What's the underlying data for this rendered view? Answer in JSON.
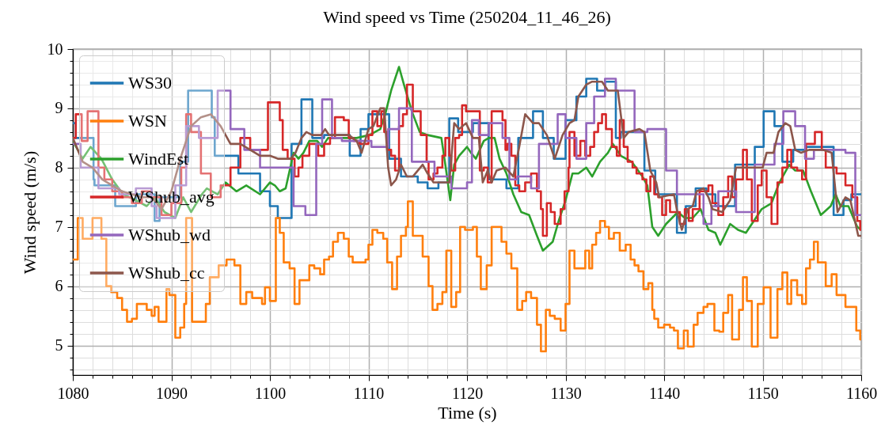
{
  "chart_data": {
    "type": "line",
    "title": "Wind speed vs Time (250204_11_46_26)",
    "xlabel": "Time (s)",
    "ylabel": "Wind speed (m/s)",
    "xlim": [
      1080,
      1160
    ],
    "xticks": [
      1080,
      {
        "value": 1082,
        "label": null
      },
      {
        "value": 1084,
        "label": null
      },
      {
        "value": 1086,
        "label": null
      },
      {
        "value": 1088,
        "label": null
      },
      1090,
      {
        "value": 1092,
        "label": null
      },
      {
        "value": 1094,
        "label": null
      },
      {
        "value": 1096,
        "label": null
      },
      {
        "value": 1098,
        "label": null
      },
      1100,
      {
        "value": 1102,
        "label": null
      },
      {
        "value": 1104,
        "label": null
      },
      {
        "value": 1106,
        "label": null
      },
      {
        "value": 1108,
        "label": null
      },
      1110,
      {
        "value": 1112,
        "label": null
      },
      {
        "value": 1114,
        "label": null
      },
      {
        "value": 1116,
        "label": null
      },
      {
        "value": 1118,
        "label": null
      },
      1120,
      {
        "value": 1122,
        "label": null
      },
      {
        "value": 1124,
        "label": null
      },
      {
        "value": 1126,
        "label": null
      },
      {
        "value": 1128,
        "label": null
      },
      1130,
      {
        "value": 1132,
        "label": null
      },
      {
        "value": 1134,
        "label": null
      },
      {
        "value": 1136,
        "label": null
      },
      {
        "value": 1138,
        "label": null
      },
      1140,
      {
        "value": 1142,
        "label": null
      },
      {
        "value": 1144,
        "label": null
      },
      {
        "value": 1146,
        "label": null
      },
      {
        "value": 1148,
        "label": null
      },
      1150,
      {
        "value": 1152,
        "label": null
      },
      {
        "value": 1154,
        "label": null
      },
      {
        "value": 1156,
        "label": null
      },
      {
        "value": 1158,
        "label": null
      },
      1160
    ],
    "ylim": [
      4.5,
      10
    ],
    "yticks": [
      {
        "value": 4.6,
        "label": null
      },
      {
        "value": 4.8,
        "label": null
      },
      5,
      {
        "value": 5.2,
        "label": null
      },
      {
        "value": 5.4,
        "label": null
      },
      {
        "value": 5.6,
        "label": null
      },
      {
        "value": 5.8,
        "label": null
      },
      6,
      {
        "value": 6.2,
        "label": null
      },
      {
        "value": 6.4,
        "label": null
      },
      {
        "value": 6.6,
        "label": null
      },
      {
        "value": 6.8,
        "label": null
      },
      7,
      {
        "value": 7.2,
        "label": null
      },
      {
        "value": 7.4,
        "label": null
      },
      {
        "value": 7.6,
        "label": null
      },
      {
        "value": 7.8,
        "label": null
      },
      8,
      {
        "value": 8.2,
        "label": null
      },
      {
        "value": 8.4,
        "label": null
      },
      {
        "value": 8.6,
        "label": null
      },
      {
        "value": 8.8,
        "label": null
      },
      9,
      {
        "value": 9.2,
        "label": null
      },
      {
        "value": 9.4,
        "label": null
      },
      {
        "value": 9.6,
        "label": null
      },
      {
        "value": 9.8,
        "label": null
      },
      10
    ],
    "grid": true,
    "legend": "top left",
    "line_style": "solid",
    "series": [
      {
        "name": "WS30",
        "type": "step",
        "color": "#1f77b4",
        "x": [
          1080,
          1080.3,
          1082.1,
          1082.2,
          1084.3,
          1086.4,
          1088.3,
          1088.8,
          1090.9,
          1091.7,
          1094.1,
          1094.4,
          1096.8,
          1099.0,
          1100.0,
          1100.8,
          1102.2,
          1103.2,
          1104.3,
          1105.5,
          1108.1,
          1109.2,
          1110.0,
          1112.1,
          1113.3,
          1115.0,
          1116.0,
          1117.1,
          1118.2,
          1119.1,
          1120.6,
          1122.2,
          1124.0,
          1125.2,
          1126.7,
          1127.7,
          1128.8,
          1130.0,
          1131.1,
          1132.1,
          1133.2,
          1134.0,
          1135.1,
          1135.6,
          1138.0,
          1139.1,
          1141.3,
          1142.2,
          1143.2,
          1144.3,
          1145.2,
          1147.2,
          1149.2,
          1150.1,
          1151.2,
          1152.0,
          1153.1,
          1154.4,
          1157.2,
          1158.2,
          1159.0,
          1160
        ],
        "values": [
          8.75,
          8.5,
          7.8,
          7.7,
          7.35,
          7.55,
          7.1,
          7.5,
          8.1,
          9.3,
          8.85,
          8.2,
          7.9,
          7.6,
          7.35,
          7.15,
          8.4,
          9.15,
          8.5,
          8.55,
          8.2,
          8.65,
          8.9,
          8.15,
          7.85,
          7.75,
          7.65,
          7.75,
          8.83,
          8.6,
          8.75,
          7.8,
          7.65,
          8.5,
          8.95,
          8.5,
          8.15,
          8.8,
          9.2,
          9.5,
          9.3,
          9.45,
          8.5,
          8.6,
          7.95,
          7.55,
          6.9,
          7.35,
          7.65,
          7.55,
          7.35,
          8.05,
          8.35,
          8.95,
          8.7,
          8.1,
          8.3,
          8.35,
          7.2,
          7.45,
          7.55,
          7.55
        ]
      },
      {
        "name": "WSN",
        "type": "step",
        "color": "#ff7f0e",
        "x": [
          1080,
          1080.5,
          1081.0,
          1082.0,
          1082.9,
          1083.4,
          1083.9,
          1084.5,
          1085.0,
          1085.5,
          1086.0,
          1086.5,
          1087.5,
          1088.0,
          1088.3,
          1088.7,
          1089.5,
          1089.8,
          1090.4,
          1090.9,
          1091.3,
          1091.5,
          1092.1,
          1093.5,
          1093.9,
          1094.8,
          1095.6,
          1096.4,
          1097.0,
          1097.6,
          1098.2,
          1099.2,
          1099.5,
          1100.0,
          1100.6,
          1101.0,
          1101.4,
          1102.0,
          1102.5,
          1103.0,
          1104.0,
          1104.5,
          1105.1,
          1105.5,
          1106.0,
          1106.4,
          1106.9,
          1107.5,
          1108.0,
          1108.4,
          1109.7,
          1110.0,
          1110.4,
          1110.9,
          1111.5,
          1111.9,
          1112.4,
          1112.9,
          1113.3,
          1113.8,
          1114.0,
          1114.5,
          1115.5,
          1116.1,
          1116.5,
          1117.0,
          1117.5,
          1117.9,
          1118.4,
          1118.9,
          1119.3,
          1119.8,
          1120.6,
          1121.0,
          1121.4,
          1122.0,
          1122.5,
          1123.5,
          1124.0,
          1124.5,
          1125.1,
          1125.6,
          1126.0,
          1126.5,
          1127.1,
          1127.5,
          1128.0,
          1128.4,
          1128.9,
          1129.5,
          1130.0,
          1130.4,
          1130.9,
          1132.0,
          1132.4,
          1132.7,
          1133.1,
          1133.5,
          1134.0,
          1134.4,
          1134.9,
          1135.5,
          1136.1,
          1136.6,
          1137.0,
          1137.4,
          1137.9,
          1138.4,
          1138.8,
          1139.0,
          1139.4,
          1140.0,
          1140.6,
          1141.0,
          1141.4,
          1142.0,
          1142.4,
          1143.0,
          1143.4,
          1144.0,
          1144.4,
          1145.1,
          1145.6,
          1146.0,
          1146.5,
          1146.9,
          1147.6,
          1148.0,
          1148.4,
          1148.9,
          1149.5,
          1150.1,
          1150.8,
          1151.5,
          1152.0,
          1152.5,
          1152.9,
          1153.5,
          1154.0,
          1154.4,
          1154.8,
          1155.2,
          1155.6,
          1156.4,
          1157.0,
          1157.5,
          1158.4,
          1159.5,
          1159.9,
          1160
        ],
        "values": [
          6.45,
          7.15,
          6.8,
          7.15,
          6.8,
          6.0,
          5.9,
          5.8,
          5.6,
          5.4,
          5.45,
          5.7,
          5.6,
          5.5,
          5.65,
          5.4,
          5.95,
          5.85,
          5.13,
          5.3,
          5.7,
          7.15,
          5.4,
          5.7,
          6.15,
          6.35,
          6.45,
          6.35,
          5.7,
          5.9,
          5.8,
          5.7,
          5.98,
          5.75,
          7.15,
          6.9,
          6.4,
          6.3,
          5.7,
          6.1,
          6.35,
          6.3,
          6.2,
          6.45,
          6.5,
          6.75,
          6.9,
          6.8,
          6.5,
          6.4,
          6.45,
          6.7,
          6.95,
          6.9,
          6.8,
          6.4,
          5.95,
          6.5,
          6.85,
          7.0,
          7.43,
          6.85,
          6.5,
          6.0,
          5.6,
          5.7,
          5.9,
          6.6,
          5.65,
          5.9,
          7.0,
          6.95,
          7.0,
          6.5,
          5.95,
          6.35,
          7.0,
          6.75,
          6.55,
          6.3,
          5.6,
          5.75,
          5.9,
          5.8,
          5.35,
          4.9,
          5.6,
          5.5,
          5.45,
          5.25,
          5.7,
          6.6,
          6.3,
          6.6,
          6.3,
          6.7,
          6.9,
          7.1,
          7.0,
          6.8,
          6.9,
          6.6,
          6.7,
          6.45,
          6.35,
          6.25,
          5.95,
          6.05,
          5.6,
          5.45,
          5.3,
          5.35,
          5.3,
          5.25,
          4.95,
          5.25,
          4.98,
          5.35,
          5.55,
          5.65,
          5.7,
          5.25,
          5.23,
          5.55,
          5.85,
          5.1,
          5.6,
          6.15,
          5.75,
          4.98,
          5.7,
          5.98,
          5.13,
          5.95,
          6.23,
          5.7,
          6.1,
          5.85,
          5.7,
          6.3,
          6.45,
          6.75,
          6.4,
          6.0,
          6.2,
          5.85,
          5.65,
          5.25,
          5.1,
          5.1
        ]
      },
      {
        "name": "WindEst",
        "type": "line",
        "color": "#2ca02c",
        "x": [
          1080,
          1081.0,
          1081.8,
          1082.9,
          1084.0,
          1085.1,
          1086.4,
          1087.5,
          1088.3,
          1089.3,
          1090.4,
          1091.2,
          1092.0,
          1093.1,
          1093.6,
          1094.7,
          1095.5,
          1096.6,
          1097.6,
          1099.0,
          1100.0,
          1100.5,
          1101.0,
          1101.6,
          1102.4,
          1102.9,
          1103.4,
          1104.0,
          1104.8,
          1105.3,
          1105.9,
          1106.7,
          1107.7,
          1108.8,
          1110.1,
          1111.2,
          1111.7,
          1112.3,
          1113.1,
          1113.6,
          1114.4,
          1115.2,
          1116.0,
          1117.4,
          1117.8,
          1118.3,
          1118.7,
          1119.2,
          1120.0,
          1120.4,
          1120.9,
          1121.7,
          1122.2,
          1122.8,
          1123.3,
          1124.0,
          1124.7,
          1125.5,
          1126.3,
          1127.1,
          1127.7,
          1128.7,
          1129.3,
          1130.0,
          1130.7,
          1131.3,
          1132.1,
          1132.7,
          1133.5,
          1134.3,
          1134.8,
          1135.6,
          1136.7,
          1137.8,
          1138.3,
          1138.8,
          1139.4,
          1140.2,
          1140.8,
          1141.4,
          1142.1,
          1142.9,
          1143.7,
          1144.5,
          1145.2,
          1145.7,
          1146.7,
          1147.5,
          1148.3,
          1149.1,
          1149.9,
          1150.9,
          1151.7,
          1152.7,
          1153.3,
          1154.1,
          1154.9,
          1155.9,
          1156.9,
          1157.4,
          1157.9,
          1158.7,
          1159.6,
          1160
        ],
        "values": [
          8.45,
          8.15,
          8.35,
          8.15,
          7.8,
          7.55,
          7.45,
          7.35,
          7.5,
          7.25,
          7.15,
          7.5,
          7.25,
          7.55,
          7.65,
          7.55,
          7.75,
          7.6,
          7.7,
          7.55,
          7.75,
          7.7,
          7.6,
          7.65,
          8.25,
          8.15,
          8.25,
          8.45,
          8.45,
          8.35,
          8.5,
          8.5,
          8.5,
          8.5,
          8.55,
          8.65,
          8.9,
          9.3,
          9.7,
          9.4,
          8.95,
          8.6,
          8.55,
          8.5,
          8.05,
          7.45,
          8.05,
          8.2,
          8.35,
          8.25,
          8.15,
          8.45,
          8.5,
          8.5,
          8.15,
          7.9,
          7.55,
          7.25,
          7.2,
          6.85,
          6.6,
          6.75,
          7.1,
          7.45,
          7.9,
          7.9,
          8.0,
          7.85,
          8.1,
          8.25,
          8.4,
          8.2,
          8.1,
          7.85,
          7.7,
          7.0,
          6.85,
          7.05,
          7.15,
          7.25,
          7.15,
          7.15,
          7.3,
          6.95,
          6.9,
          6.7,
          7.05,
          6.95,
          6.9,
          7.1,
          7.3,
          7.4,
          7.75,
          8.05,
          7.95,
          7.95,
          7.6,
          7.2,
          7.35,
          7.55,
          7.35,
          7.35,
          7.0,
          6.95
        ]
      },
      {
        "name": "WShub_avg",
        "type": "step",
        "color": "#d62728",
        "x": [
          1080,
          1080.3,
          1080.9,
          1081.5,
          1082.6,
          1083.2,
          1084,
          1085,
          1086,
          1087,
          1088,
          1089,
          1090,
          1091,
          1091.5,
          1092,
          1093,
          1094,
          1095,
          1096,
          1097,
          1098,
          1099.8,
          1101.0,
          1101.3,
          1101.8,
          1102.5,
          1102.9,
          1103.3,
          1104.0,
          1104.9,
          1105.5,
          1106.1,
          1106.6,
          1107.5,
          1108.0,
          1108.5,
          1109.1,
          1110.0,
          1110.4,
          1110.9,
          1111.3,
          1111.6,
          1111.9,
          1112.3,
          1112.7,
          1113.1,
          1113.5,
          1113.9,
          1114.5,
          1115.3,
          1115.9,
          1116.1,
          1116.6,
          1117.0,
          1117.5,
          1117.8,
          1118.2,
          1118.4,
          1118.8,
          1119.2,
          1119.5,
          1119.9,
          1121.3,
          1121.7,
          1122.1,
          1122.5,
          1123.6,
          1123.9,
          1124.1,
          1124.5,
          1124.9,
          1125.3,
          1125.9,
          1126.5,
          1127.1,
          1127.5,
          1127.7,
          1128.1,
          1128.5,
          1128.9,
          1129.5,
          1129.9,
          1130.3,
          1130.4,
          1130.9,
          1131.5,
          1132.0,
          1132.5,
          1132.9,
          1133.3,
          1133.7,
          1134.1,
          1134.7,
          1135.2,
          1135.5,
          1135.9,
          1136.3,
          1136.8,
          1137.2,
          1137.8,
          1138.2,
          1138.6,
          1139.0,
          1139.4,
          1139.8,
          1140.2,
          1140.6,
          1141.6,
          1142.1,
          1142.5,
          1142.9,
          1143.6,
          1144.5,
          1144.9,
          1145.5,
          1146.0,
          1146.5,
          1146.9,
          1147.3,
          1148.0,
          1148.4,
          1148.9,
          1149.5,
          1149.9,
          1150.4,
          1150.9,
          1151.5,
          1152.0,
          1152.5,
          1152.9,
          1153.5,
          1154.0,
          1154.4,
          1155.3,
          1156.0,
          1156.4,
          1157.5,
          1158.4,
          1159.1,
          1159.6,
          1159.9,
          1160
        ],
        "values": [
          8.5,
          8.9,
          8.45,
          8.95,
          8.0,
          7.8,
          7.6,
          7.5,
          7.4,
          7.6,
          7.5,
          7.2,
          7.4,
          8.0,
          8.9,
          8.6,
          7.9,
          7.5,
          7.7,
          8.0,
          8.5,
          8.3,
          9.1,
          8.8,
          8.3,
          8.15,
          7.85,
          8.0,
          8.2,
          8.4,
          8.2,
          8.4,
          8.5,
          8.85,
          8.8,
          8.5,
          8.45,
          8.4,
          8.55,
          8.95,
          8.7,
          8.95,
          8.6,
          8.3,
          8.2,
          7.95,
          8.7,
          8.9,
          9.4,
          8.95,
          8.55,
          8.1,
          7.8,
          7.9,
          8.0,
          8.2,
          8.5,
          8.2,
          7.95,
          8.5,
          8.55,
          9.05,
          8.95,
          7.95,
          8.0,
          7.75,
          8.95,
          8.8,
          8.3,
          8.4,
          8.2,
          7.7,
          7.6,
          7.75,
          7.9,
          7.6,
          7.3,
          6.85,
          7.4,
          7.25,
          7.05,
          7.3,
          7.6,
          8.0,
          8.6,
          8.2,
          8.45,
          8.2,
          8.35,
          8.6,
          8.75,
          8.9,
          8.65,
          8.35,
          8.2,
          8.8,
          8.35,
          8.1,
          8.0,
          7.9,
          7.8,
          7.6,
          7.85,
          7.55,
          7.5,
          7.2,
          7.45,
          7.25,
          7.05,
          7.3,
          7.1,
          7.3,
          7.6,
          7.7,
          7.4,
          7.2,
          7.5,
          7.85,
          7.5,
          7.8,
          8.3,
          7.8,
          7.1,
          7.7,
          7.95,
          7.5,
          7.05,
          7.75,
          8.0,
          8.3,
          8.0,
          7.95,
          7.8,
          8.4,
          8.6,
          8.3,
          8.0,
          7.9,
          7.7,
          7.5,
          7.1,
          6.95,
          6.95
        ]
      },
      {
        "name": "WShub_wd",
        "type": "step",
        "color": "#9467bd",
        "x": [
          1080,
          1080.8,
          1082.6,
          1084.7,
          1086.4,
          1088.0,
          1088.5,
          1090.4,
          1091.5,
          1092.8,
          1094.7,
          1096.0,
          1097.4,
          1099.0,
          1102.4,
          1103.6,
          1104.7,
          1105.3,
          1106.3,
          1107.3,
          1110.3,
          1112.0,
          1113.1,
          1114.4,
          1116.7,
          1118.4,
          1120.0,
          1120.5,
          1121.2,
          1122.2,
          1123.6,
          1124.3,
          1125.1,
          1126.5,
          1127.3,
          1129.2,
          1130.0,
          1131.1,
          1132.1,
          1132.9,
          1134.0,
          1135.1,
          1137.0,
          1138.3,
          1140.2,
          1141.3,
          1144.0,
          1144.8,
          1145.5,
          1147.3,
          1149.2,
          1151.2,
          1152.1,
          1153.3,
          1154.3,
          1155.2,
          1158.4,
          1159.4,
          1160
        ],
        "values": [
          8.4,
          8.0,
          7.65,
          7.55,
          7.65,
          7.35,
          7.15,
          7.7,
          8.7,
          8.5,
          9.3,
          8.65,
          8.3,
          8.0,
          7.35,
          7.2,
          8.4,
          9.15,
          8.5,
          8.45,
          8.35,
          8.65,
          9.0,
          8.1,
          7.85,
          7.65,
          7.75,
          8.8,
          8.55,
          8.75,
          8.5,
          7.8,
          7.85,
          7.65,
          8.4,
          8.9,
          8.5,
          8.15,
          8.75,
          9.2,
          9.5,
          9.3,
          8.6,
          8.65,
          7.95,
          7.55,
          7.05,
          7.35,
          7.6,
          7.25,
          8.05,
          8.4,
          8.95,
          8.7,
          8.15,
          8.3,
          8.25,
          7.2,
          7.2
        ]
      },
      {
        "name": "WShub_cc",
        "type": "line",
        "color": "#8c564b",
        "x": [
          1080,
          1081,
          1082,
          1083,
          1084,
          1085,
          1086,
          1087,
          1088,
          1089,
          1090,
          1091,
          1092,
          1093,
          1094,
          1095,
          1096,
          1097,
          1098,
          1099,
          1100.0,
          1100.8,
          1102.1,
          1102.6,
          1103.2,
          1103.7,
          1104.3,
          1105.2,
          1105.6,
          1106.0,
          1108.0,
          1108.8,
          1109.3,
          1110.0,
          1110.5,
          1111.2,
          1111.6,
          1112.0,
          1112.3,
          1112.8,
          1113.3,
          1113.9,
          1114.5,
          1115.5,
          1116.0,
          1116.6,
          1118.2,
          1118.7,
          1119.2,
          1119.9,
          1120.6,
          1121.2,
          1121.6,
          1122.1,
          1122.5,
          1123.0,
          1123.9,
          1124.7,
          1125.3,
          1125.9,
          1126.7,
          1127.3,
          1128.1,
          1128.9,
          1129.7,
          1130.4,
          1130.9,
          1131.3,
          1132.1,
          1132.7,
          1133.7,
          1134.3,
          1135.3,
          1135.9,
          1136.4,
          1137.5,
          1138.0,
          1138.6,
          1139.2,
          1139.5,
          1141.0,
          1141.4,
          1141.8,
          1142.4,
          1142.9,
          1143.3,
          1144.0,
          1144.5,
          1144.9,
          1145.9,
          1146.7,
          1147.3,
          1148.3,
          1150.0,
          1150.4,
          1151.1,
          1151.6,
          1152.3,
          1152.8,
          1153.3,
          1153.9,
          1154.7,
          1156.1,
          1157.0,
          1157.6,
          1158.4,
          1158.9,
          1159.7,
          1160
        ],
        "values": [
          8.5,
          8.1,
          8.0,
          7.8,
          7.7,
          7.6,
          7.55,
          7.5,
          7.5,
          7.3,
          7.6,
          8.2,
          8.7,
          8.85,
          8.9,
          8.7,
          8.4,
          8.4,
          8.3,
          8.2,
          8.2,
          8.15,
          8.15,
          8.25,
          8.5,
          8.6,
          8.55,
          8.55,
          8.65,
          8.55,
          8.55,
          8.45,
          8.25,
          8.65,
          8.7,
          9.0,
          9.0,
          8.0,
          7.7,
          7.8,
          8.05,
          7.85,
          7.85,
          8.05,
          7.9,
          7.75,
          7.75,
          8.75,
          8.65,
          8.75,
          8.5,
          8.5,
          7.75,
          7.95,
          7.75,
          7.95,
          8.0,
          7.85,
          8.35,
          8.9,
          8.75,
          8.75,
          8.55,
          8.15,
          8.55,
          8.75,
          8.8,
          9.2,
          9.4,
          9.45,
          9.45,
          9.3,
          9.3,
          8.5,
          8.6,
          8.65,
          8.6,
          7.95,
          7.75,
          7.5,
          7.55,
          7.2,
          6.95,
          7.3,
          7.35,
          7.6,
          7.65,
          7.5,
          7.3,
          7.25,
          7.45,
          8.0,
          8.0,
          8.0,
          8.25,
          8.25,
          8.6,
          8.75,
          8.7,
          8.3,
          8.25,
          8.3,
          8.3,
          8.25,
          7.25,
          7.5,
          7.45,
          6.85,
          6.85
        ]
      }
    ]
  }
}
